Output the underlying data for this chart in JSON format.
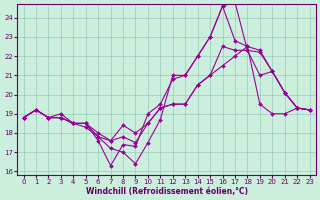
{
  "xlabel": "Windchill (Refroidissement éolien,°C)",
  "background_color": "#cceedd",
  "line_color": "#990099",
  "grid_color": "#99ccbb",
  "xlim": [
    -0.5,
    23.5
  ],
  "ylim": [
    15.8,
    24.7
  ],
  "yticks": [
    16,
    17,
    18,
    19,
    20,
    21,
    22,
    23,
    24
  ],
  "xticks": [
    0,
    1,
    2,
    3,
    4,
    5,
    6,
    7,
    8,
    9,
    10,
    11,
    12,
    13,
    14,
    15,
    16,
    17,
    18,
    19,
    20,
    21,
    22,
    23
  ],
  "series": [
    [
      18.8,
      19.2,
      18.8,
      19.0,
      18.5,
      18.5,
      18.0,
      17.6,
      17.8,
      17.5,
      18.5,
      19.3,
      19.5,
      19.5,
      20.5,
      21.0,
      22.5,
      22.3,
      22.3,
      22.2,
      21.2,
      20.1,
      19.3,
      19.2
    ],
    [
      18.8,
      19.2,
      18.8,
      18.8,
      18.5,
      18.5,
      17.8,
      17.2,
      17.0,
      16.4,
      17.5,
      18.7,
      21.0,
      21.0,
      22.0,
      23.0,
      24.6,
      22.8,
      22.5,
      22.3,
      21.2,
      20.1,
      19.3,
      19.2
    ],
    [
      18.8,
      19.2,
      18.8,
      18.8,
      18.5,
      18.5,
      17.6,
      16.3,
      17.4,
      17.3,
      19.0,
      19.5,
      20.8,
      21.0,
      22.0,
      23.0,
      24.6,
      24.8,
      22.3,
      21.0,
      21.2,
      20.1,
      19.3,
      19.2
    ],
    [
      18.8,
      19.2,
      18.8,
      18.8,
      18.5,
      18.3,
      17.8,
      17.6,
      18.4,
      18.0,
      18.5,
      19.3,
      19.5,
      19.5,
      20.5,
      21.0,
      21.5,
      22.0,
      22.5,
      19.5,
      19.0,
      19.0,
      19.3,
      19.2
    ]
  ]
}
